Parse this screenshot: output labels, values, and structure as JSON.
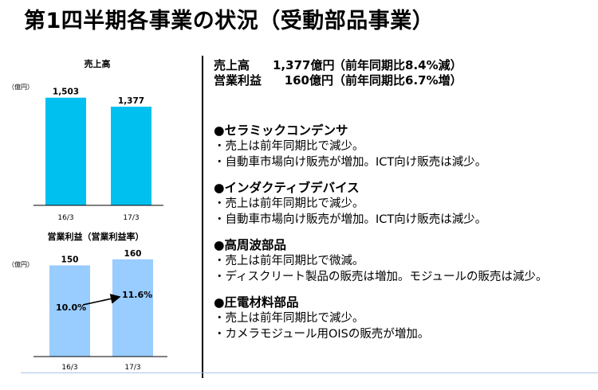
{
  "title": "第1四半期各事業の状況（受動部品事業）",
  "summary": [
    {
      "label": "売上高",
      "value": "1,377億円",
      "note": "（前年同期比8.4%減）"
    },
    {
      "label": "営業利益",
      "value": "160億円",
      "note": "（前年同期比6.7%増）"
    }
  ],
  "sections": [
    {
      "heading": "●セラミックコンデンサ",
      "bullets": [
        "・売上は前年同期比で減少。",
        "・自動車市場向け販売が増加。ICT向け販売は減少。"
      ]
    },
    {
      "heading": "●インダクティブデバイス",
      "bullets": [
        "・売上は前年同期比で減少。",
        "・自動車市場向け販売が増加。ICT向け販売は減少。"
      ]
    },
    {
      "heading": "●高周波部品",
      "bullets": [
        "・売上は前年同期比で微減。",
        "・ディスクリート製品の販売は増加。モジュールの販売は減少。"
      ]
    },
    {
      "heading": "●圧電材料部品",
      "bullets": [
        "・売上は前年同期比で減少。",
        "・カメラモジュール用OISの販売が増加。"
      ]
    }
  ],
  "colors": {
    "sales_bar": "#00c0f0",
    "profit_bar": "#99ccff"
  },
  "chart_data": [
    {
      "type": "bar",
      "title": "売上高",
      "unit": "（億円）",
      "categories": [
        "16/3",
        "17/3"
      ],
      "values": [
        1503,
        1377
      ],
      "value_labels": [
        "1,503",
        "1,377"
      ],
      "ylim": [
        0,
        1600
      ]
    },
    {
      "type": "bar",
      "title": "営業利益（営業利益率）",
      "unit": "（億円）",
      "categories": [
        "16/3",
        "17/3"
      ],
      "values": [
        150,
        160
      ],
      "value_labels": [
        "150",
        "160"
      ],
      "ylim": [
        0,
        165
      ],
      "margins": [
        10.0,
        11.6
      ],
      "margin_labels": [
        "10.0%",
        "11.6%"
      ]
    }
  ]
}
